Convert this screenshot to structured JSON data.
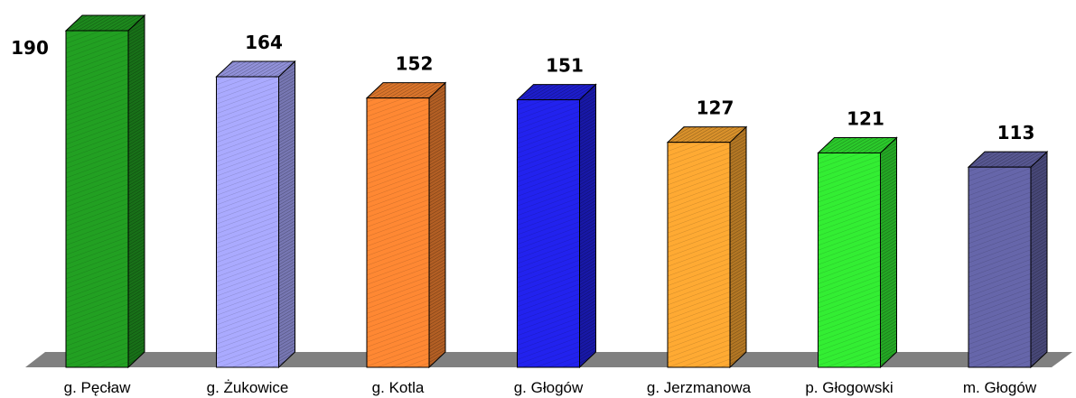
{
  "chart_data": {
    "type": "bar",
    "categories": [
      "g. Pęcław",
      "g. Żukowice",
      "g. Kotla",
      "g. Głogów",
      "g. Jerzmanowa",
      "p. Głogowski",
      "m. Głogów"
    ],
    "values": [
      190,
      164,
      152,
      151,
      127,
      121,
      113
    ],
    "title": "",
    "xlabel": "",
    "ylabel": "",
    "ylim": [
      0,
      190
    ],
    "grid": false,
    "legend": "none",
    "bar_colors": [
      "#22a022",
      "#aaaaff",
      "#ff8833",
      "#2222ee",
      "#ffaa33",
      "#33ee33",
      "#6666aa"
    ],
    "floor_color": "#808080"
  }
}
